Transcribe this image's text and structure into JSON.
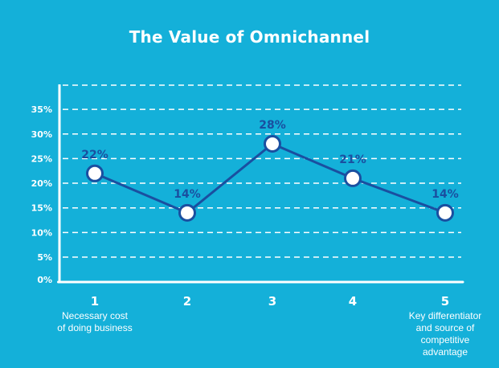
{
  "colors": {
    "background": "#14b0d9",
    "axis": "#ffffff",
    "gridline": "#ffffff",
    "line": "#1a4fa0",
    "marker_fill": "#ffffff",
    "marker_stroke": "#1a4fa0",
    "data_label": "#1a4fa0",
    "text": "#ffffff"
  },
  "chart_data": {
    "type": "line",
    "title": "The Value of Omnichannel",
    "xlabel": "",
    "ylabel": "",
    "categories": [
      "1",
      "2",
      "3",
      "4",
      "5"
    ],
    "category_descriptions": [
      [
        "Necessary cost",
        "of doing business"
      ],
      [],
      [],
      [],
      [
        "Key differentiator",
        "and source of",
        "competitive",
        "advantage"
      ]
    ],
    "series": [
      {
        "name": "Value of Omnichannel",
        "values": [
          22,
          14,
          28,
          21,
          14
        ],
        "data_labels": [
          "22%",
          "14%",
          "28%",
          "21%",
          "14%"
        ]
      }
    ],
    "y_ticks": [
      0,
      5,
      10,
      15,
      20,
      25,
      30,
      35
    ],
    "y_tick_labels": [
      "0%",
      "5%",
      "10%",
      "15%",
      "20%",
      "25%",
      "30%",
      "35%"
    ],
    "ylim": [
      0,
      40
    ],
    "grid": "horizontal-dashed",
    "legend": "none"
  }
}
